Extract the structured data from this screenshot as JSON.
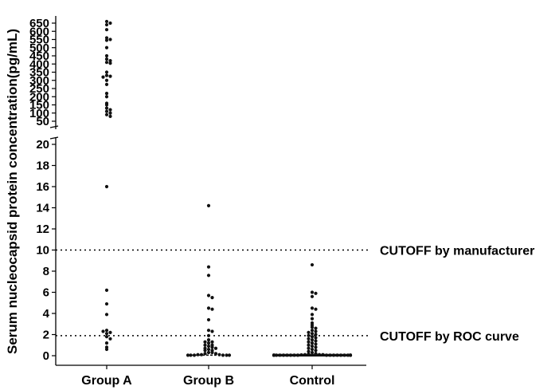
{
  "chart_data": {
    "type": "scatter",
    "ylabel": "Serum nucleocapsid protein concentration(pg/mL)",
    "categories": [
      "Group A",
      "Group B",
      "Control"
    ],
    "y_axis_upper_segment": {
      "range": [
        50,
        650
      ],
      "ticks": [
        "50",
        "100",
        "150",
        "200",
        "250",
        "300",
        "350",
        "400",
        "450",
        "500",
        "550",
        "600",
        "650"
      ]
    },
    "y_axis_lower_segment": {
      "range": [
        0,
        20
      ],
      "ticks": [
        "0",
        "2",
        "4",
        "6",
        "8",
        "10",
        "12",
        "14",
        "16",
        "18",
        "20"
      ]
    },
    "axis_break": true,
    "reference_lines": [
      {
        "value": 10,
        "label": "CUTOFF by manufacturer",
        "style": "dotted"
      },
      {
        "value": 1.9,
        "label": "CUTOFF by ROC curve",
        "style": "dotted"
      }
    ],
    "series": [
      {
        "category": "Group A",
        "values": [
          660,
          650,
          640,
          610,
          560,
          550,
          545,
          500,
          450,
          430,
          420,
          410,
          405,
          350,
          330,
          325,
          320,
          300,
          275,
          220,
          200,
          160,
          150,
          130,
          120,
          110,
          100,
          90,
          80,
          16,
          6.2,
          4.9,
          3.9,
          2.4,
          2.2,
          2.3,
          2.1,
          1.8,
          1.6,
          1.2,
          0.8,
          0.6
        ]
      },
      {
        "category": "Group B",
        "values": [
          14.2,
          8.4,
          7.6,
          5.7,
          5.5,
          4.5,
          4.4,
          3.4,
          2.4,
          2.3,
          1.9,
          1.5,
          1.3,
          1.3,
          1.2,
          1.0,
          1.0,
          0.9,
          0.8,
          0.7,
          0.7,
          0.6,
          0.5,
          0.5,
          0.3,
          0.3,
          0.2,
          0.2,
          0.1,
          0.1,
          0.1,
          0.05,
          0.05,
          0.05,
          0.05,
          0.05,
          0.05
        ]
      },
      {
        "category": "Control",
        "values": [
          8.6,
          6.0,
          5.9,
          5.6,
          4.5,
          4.4,
          3.9,
          3.5,
          3.1,
          2.9,
          2.7,
          2.6,
          2.4,
          2.3,
          2.2,
          2.1,
          2.0,
          1.9,
          1.8,
          1.7,
          1.6,
          1.5,
          1.4,
          1.3,
          1.2,
          1.1,
          1.0,
          0.9,
          0.8,
          0.7,
          0.6,
          0.5,
          0.4,
          0.3,
          0.2,
          0.15,
          0.1,
          0.1,
          0.1,
          0.08,
          0.05,
          0.05,
          0.05,
          0.05,
          0.05,
          0.05,
          0.05,
          0.05,
          0.05,
          0.05,
          0.05,
          0.05,
          0.05,
          0.05,
          0.05,
          0.05,
          0.05,
          0.05,
          0.05,
          0.05
        ]
      }
    ]
  }
}
